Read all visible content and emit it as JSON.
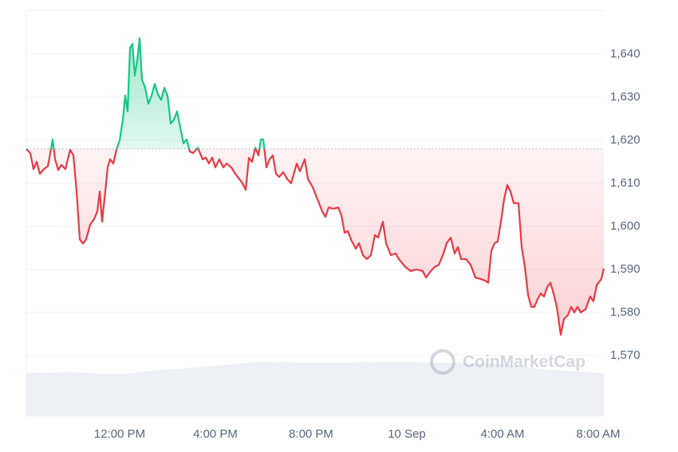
{
  "chart_data": {
    "type": "line",
    "watermark": "CoinMarketCap",
    "xlim": [
      8.1,
      32.233
    ],
    "ylim": [
      1555.9,
      1650.2
    ],
    "yticks": [
      {
        "value": 1570,
        "label": "1,570"
      },
      {
        "value": 1580,
        "label": "1,580"
      },
      {
        "value": 1590,
        "label": "1,590"
      },
      {
        "value": 1600,
        "label": "1,600"
      },
      {
        "value": 1610,
        "label": "1,610"
      },
      {
        "value": 1620,
        "label": "1,620"
      },
      {
        "value": 1630,
        "label": "1,630"
      },
      {
        "value": 1640,
        "label": "1,640"
      }
    ],
    "xticks": [
      {
        "value": 12,
        "label": "12:00 PM"
      },
      {
        "value": 16,
        "label": "4:00 PM"
      },
      {
        "value": 20,
        "label": "8:00 PM"
      },
      {
        "value": 24,
        "label": "10 Sep"
      },
      {
        "value": 28,
        "label": "4:00 AM"
      },
      {
        "value": 32,
        "label": "8:00 AM"
      }
    ],
    "grid": true,
    "baseline": 1618,
    "up_color": "#16c784",
    "down_color": "#ea3943",
    "x": [
      8.1,
      8.267,
      8.4,
      8.533,
      8.667,
      8.833,
      9,
      9.1,
      9.2,
      9.3,
      9.433,
      9.567,
      9.733,
      9.933,
      10.067,
      10.2,
      10.333,
      10.467,
      10.6,
      10.767,
      10.933,
      11.067,
      11.167,
      11.267,
      11.367,
      11.5,
      11.6,
      11.733,
      11.867,
      12,
      12.133,
      12.233,
      12.333,
      12.433,
      12.533,
      12.633,
      12.733,
      12.833,
      12.933,
      13.067,
      13.2,
      13.333,
      13.467,
      13.6,
      13.733,
      13.867,
      14,
      14.133,
      14.267,
      14.4,
      14.533,
      14.667,
      14.8,
      14.933,
      15.067,
      15.267,
      15.467,
      15.6,
      15.733,
      15.867,
      16,
      16.167,
      16.333,
      16.467,
      16.667,
      16.833,
      17,
      17.133,
      17.267,
      17.4,
      17.533,
      17.667,
      17.8,
      17.9,
      18,
      18.133,
      18.267,
      18.4,
      18.533,
      18.667,
      18.833,
      19,
      19.167,
      19.4,
      19.533,
      19.733,
      19.867,
      20.067,
      20.267,
      20.467,
      20.6,
      20.733,
      20.933,
      21.133,
      21.267,
      21.4,
      21.533,
      21.667,
      21.867,
      22,
      22.167,
      22.333,
      22.5,
      22.667,
      22.8,
      23,
      23.133,
      23.333,
      23.533,
      23.667,
      23.933,
      24.167,
      24.4,
      24.667,
      24.8,
      25,
      25.167,
      25.333,
      25.533,
      25.667,
      25.833,
      26,
      26.133,
      26.267,
      26.467,
      26.667,
      26.867,
      27.067,
      27.267,
      27.4,
      27.533,
      27.667,
      27.8,
      27.933,
      28.067,
      28.2,
      28.333,
      28.467,
      28.667,
      28.8,
      28.933,
      29.067,
      29.2,
      29.333,
      29.467,
      29.6,
      29.733,
      29.867,
      30,
      30.133,
      30.267,
      30.433,
      30.567,
      30.733,
      30.867,
      31,
      31.133,
      31.267,
      31.467,
      31.667,
      31.8,
      31.933,
      32.133,
      32.233
    ],
    "values": [
      1618,
      1617,
      1613.3,
      1615,
      1612.2,
      1613.3,
      1614,
      1617,
      1620.2,
      1615.6,
      1613.1,
      1614.3,
      1613.3,
      1617.8,
      1616.5,
      1608.1,
      1597,
      1596,
      1597,
      1600.4,
      1601.7,
      1603.5,
      1608.1,
      1601.1,
      1606.3,
      1613.7,
      1615.6,
      1614.6,
      1617.8,
      1620,
      1624.8,
      1630.4,
      1626.7,
      1641.5,
      1642.4,
      1635,
      1638.7,
      1643.7,
      1634.1,
      1632.2,
      1628.5,
      1630.4,
      1633.1,
      1630.7,
      1629.4,
      1632.2,
      1630.4,
      1623.9,
      1624.8,
      1626.7,
      1623,
      1619.3,
      1620.2,
      1617.4,
      1617,
      1618.3,
      1615.6,
      1616,
      1614.6,
      1616,
      1613.7,
      1615.6,
      1613.7,
      1614.6,
      1613.7,
      1612.2,
      1611,
      1610,
      1608.5,
      1615.9,
      1615,
      1618.3,
      1616.5,
      1620.2,
      1620.2,
      1613.7,
      1615.6,
      1616.5,
      1612.2,
      1611.5,
      1612.6,
      1611,
      1610,
      1614.6,
      1612.8,
      1615.6,
      1611,
      1609.1,
      1606.3,
      1603.5,
      1602.2,
      1604.4,
      1604.1,
      1604.4,
      1602.6,
      1598.5,
      1598.9,
      1597,
      1594.8,
      1596.1,
      1593.3,
      1592.4,
      1593.3,
      1598,
      1597.4,
      1601.1,
      1596.1,
      1593.3,
      1593.7,
      1592.4,
      1590.6,
      1589.6,
      1590,
      1589.6,
      1588.1,
      1589.6,
      1590.6,
      1591,
      1593.7,
      1596.1,
      1597.4,
      1593.7,
      1595.2,
      1592.4,
      1592.4,
      1591.1,
      1588.1,
      1587.8,
      1587.4,
      1586.9,
      1594.3,
      1596.1,
      1596.5,
      1601.1,
      1606.3,
      1609.6,
      1608.1,
      1605.4,
      1605.4,
      1595.2,
      1590.6,
      1584.1,
      1581.3,
      1581.3,
      1583.1,
      1584.4,
      1583.7,
      1585.9,
      1586.9,
      1584.4,
      1581.3,
      1574.8,
      1578.5,
      1579.4,
      1581.3,
      1580,
      1581.3,
      1580,
      1580.7,
      1583.7,
      1582.6,
      1586.3,
      1587.8,
      1590.2
    ]
  }
}
